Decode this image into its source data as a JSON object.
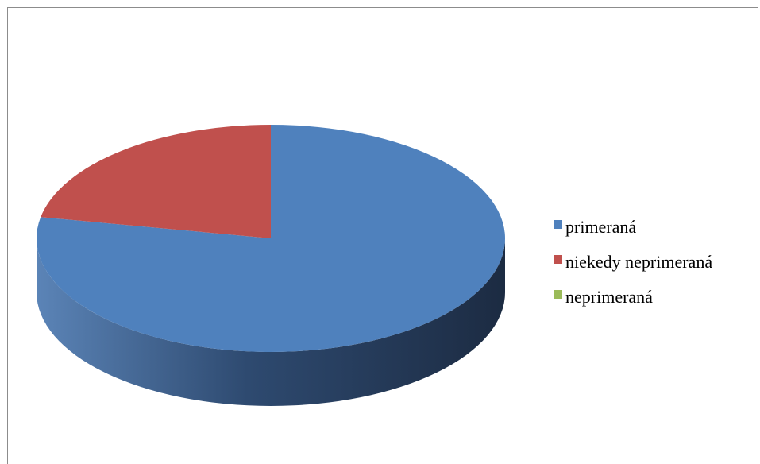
{
  "chart_data": {
    "type": "pie",
    "title": "",
    "style": "3d",
    "legend_position": "right",
    "categories": [
      "primeraná",
      "niekedy neprimeraná",
      "neprimeraná"
    ],
    "values": [
      78,
      22,
      0
    ],
    "colors": [
      "#4f81bd",
      "#c0504d",
      "#9bbb59"
    ],
    "side_colors": [
      "#2f4d71",
      "#73302e",
      "#5d7035"
    ]
  }
}
